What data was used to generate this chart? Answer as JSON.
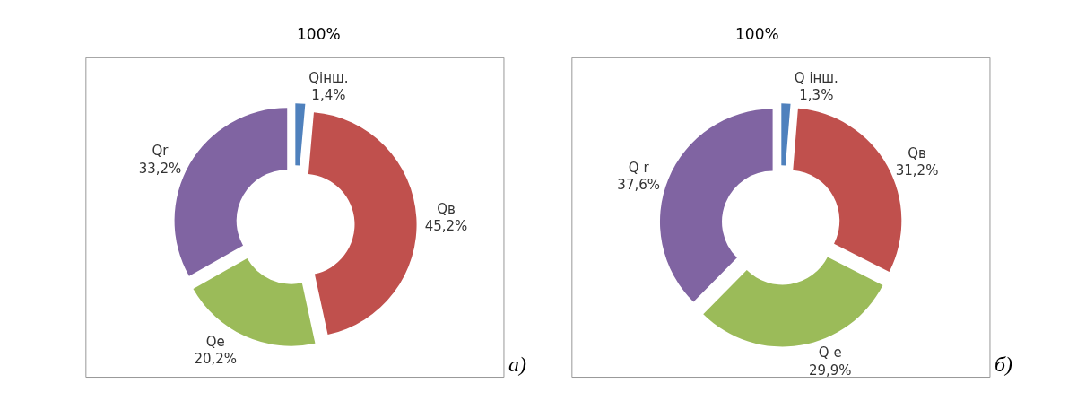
{
  "chart_data": [
    {
      "type": "donut",
      "title": "100%",
      "categories": [
        "Qінш.",
        "Qв",
        "Qe",
        "Qr"
      ],
      "values": [
        1.4,
        45.2,
        20.2,
        33.2
      ],
      "value_labels": [
        "1,4%",
        "45,2%",
        "20,2%",
        "33,2%"
      ],
      "colors": [
        "#4f81bd",
        "#c0504d",
        "#9bbb59",
        "#8064a2"
      ],
      "annotations": [
        "а)"
      ]
    },
    {
      "type": "donut",
      "title": "100%",
      "categories": [
        "Q інш.",
        "Qв",
        "Q e",
        "Q r"
      ],
      "values": [
        1.3,
        31.2,
        29.9,
        37.6
      ],
      "value_labels": [
        "1,3%",
        "31,2%",
        "29,9%",
        "37,6%"
      ],
      "colors": [
        "#4f81bd",
        "#c0504d",
        "#9bbb59",
        "#8064a2"
      ],
      "annotations": [
        "б)"
      ]
    }
  ]
}
